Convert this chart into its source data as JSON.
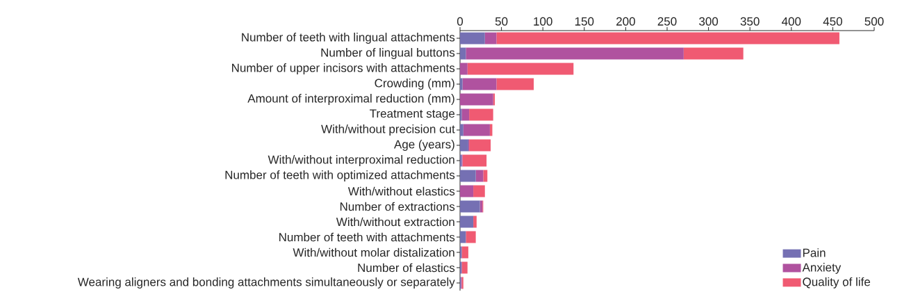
{
  "chart_data": {
    "type": "bar",
    "orientation": "horizontal",
    "stacked": true,
    "categories": [
      "Number of teeth with lingual attachments",
      "Number of lingual buttons",
      "Number of upper incisors with attachments",
      "Crowding (mm)",
      "Amount of interproximal reduction (mm)",
      "Treatment stage",
      "With/without precision cut",
      "Age (years)",
      "With/without interproximal reduction",
      "Number of teeth with optimized attachments",
      "With/without elastics",
      "Number of extractions",
      "With/without extraction",
      "Number of teeth with attachments",
      "With/without molar distalization",
      "Number of elastics",
      "Wearing aligners and bonding attachments simultaneously or separately"
    ],
    "series": [
      {
        "name": "Pain",
        "color": "#7570b3",
        "values": [
          30,
          7,
          0,
          3,
          0,
          2,
          4,
          10,
          2,
          19,
          0,
          24,
          16,
          7,
          2,
          2,
          1
        ]
      },
      {
        "name": "Anxiety",
        "color": "#b0529f",
        "values": [
          14,
          263,
          9,
          41,
          40,
          9,
          32,
          1,
          1,
          9,
          16,
          3,
          0,
          0,
          0,
          0,
          1
        ]
      },
      {
        "name": "Quality of life",
        "color": "#f05a72",
        "values": [
          414,
          72,
          128,
          45,
          2,
          29,
          3,
          26,
          29,
          5,
          14,
          1,
          4,
          12,
          8,
          7,
          2
        ]
      }
    ],
    "xlim": [
      0,
      500
    ],
    "xticks": [
      0,
      50,
      100,
      150,
      200,
      250,
      300,
      350,
      400,
      450,
      500
    ],
    "legend": "bottom right",
    "grid": false
  }
}
